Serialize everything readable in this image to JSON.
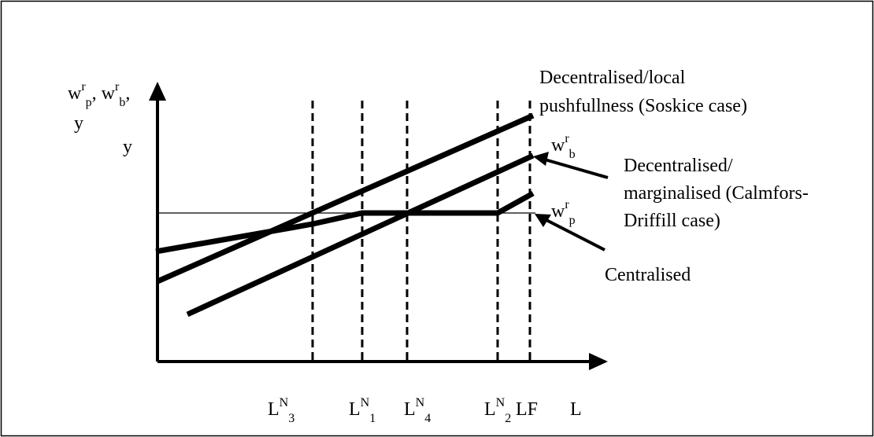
{
  "diagram": {
    "y_axis_label": {
      "line1": [
        {
          "base": "w",
          "sup": "r",
          "sub": "p"
        },
        {
          "base": ", w",
          "sup": "r",
          "sub": "b"
        },
        {
          "base": ","
        }
      ],
      "line2": "y"
    },
    "y_marker": "y",
    "x_labels": [
      {
        "base": "L",
        "sup": "N",
        "sub": "3"
      },
      {
        "base": "L",
        "sup": "N",
        "sub": "1"
      },
      {
        "base": "L",
        "sup": "N",
        "sub": "4"
      },
      {
        "base": "L",
        "sup": "N",
        "sub": "2"
      },
      {
        "base": "LF"
      },
      {
        "base": "L"
      }
    ],
    "curve_labels": {
      "pushfullness": [
        "Decentralised/local",
        "pushfullness (Soskice case)"
      ],
      "wb": {
        "base": "w",
        "sup": "r",
        "sub": "b"
      },
      "marginalised": [
        "Decentralised/",
        "marginalised (Calmfors-",
        "Driffill case)"
      ],
      "wp": {
        "base": "w",
        "sup": "r",
        "sub": "p"
      },
      "centralised": "Centralised"
    }
  }
}
